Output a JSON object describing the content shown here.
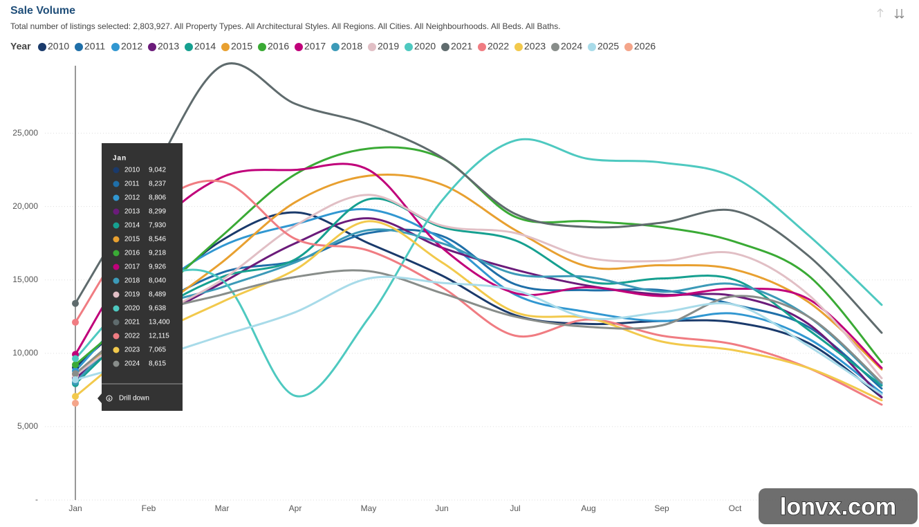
{
  "chart_data": {
    "type": "line",
    "title": "Sale Volume",
    "subtitle": "Total number of listings selected: 2,803,927. All Property Types. All Architectural Styles. All Regions. All Cities. All Neighbourhoods. All Beds. All Baths.",
    "legend_title": "Year",
    "categories": [
      "Jan",
      "Feb",
      "Mar",
      "Apr",
      "May",
      "Jun",
      "Jul",
      "Aug",
      "Sep",
      "Oct",
      null,
      null
    ],
    "ylim": [
      0,
      29600
    ],
    "yticks": [
      {
        "value": 0,
        "label": "-"
      },
      {
        "value": 5000,
        "label": "5,000"
      },
      {
        "value": 10000,
        "label": "10,000"
      },
      {
        "value": 15000,
        "label": "15,000"
      },
      {
        "value": 20000,
        "label": "20,000"
      },
      {
        "value": 25000,
        "label": "25,000"
      }
    ],
    "grid": true,
    "series": [
      {
        "name": "2010",
        "color": "#1a3a6b",
        "values": [
          9042,
          13500,
          17700,
          19600,
          17500,
          15300,
          12600,
          12000,
          12200,
          12100,
          10700,
          7000
        ]
      },
      {
        "name": "2011",
        "color": "#1f6fa8",
        "values": [
          8237,
          12800,
          15500,
          16300,
          18200,
          18000,
          14700,
          14300,
          14300,
          13300,
          11800,
          7600
        ]
      },
      {
        "name": "2012",
        "color": "#3197d1",
        "values": [
          8806,
          14000,
          17300,
          18800,
          19800,
          17800,
          14000,
          12800,
          12200,
          12700,
          11000,
          7300
        ]
      },
      {
        "name": "2013",
        "color": "#6b1b7a",
        "values": [
          8299,
          12000,
          14800,
          17500,
          19200,
          17200,
          15700,
          14600,
          14000,
          13900,
          12000,
          7000
        ]
      },
      {
        "name": "2014",
        "color": "#16a090",
        "values": [
          7930,
          12500,
          15200,
          16400,
          20500,
          18600,
          17700,
          14900,
          15100,
          15000,
          11600,
          7800
        ]
      },
      {
        "name": "2015",
        "color": "#e8a030",
        "values": [
          8546,
          12500,
          16200,
          20300,
          22100,
          21500,
          18400,
          15900,
          16000,
          15700,
          13500,
          8900
        ]
      },
      {
        "name": "2016",
        "color": "#3aaa35",
        "values": [
          9218,
          13500,
          18000,
          22200,
          23950,
          23300,
          19300,
          19000,
          18600,
          17600,
          15300,
          9400
        ]
      },
      {
        "name": "2017",
        "color": "#c0007a",
        "values": [
          9926,
          18000,
          22000,
          22500,
          22500,
          17200,
          14100,
          14500,
          13900,
          14400,
          13700,
          9000
        ]
      },
      {
        "name": "2018",
        "color": "#3c9ab8",
        "values": [
          8040,
          12800,
          14500,
          16200,
          18400,
          17500,
          15400,
          15200,
          14200,
          14700,
          12500,
          7900
        ]
      },
      {
        "name": "2019",
        "color": "#e1bfc5",
        "values": [
          8489,
          12200,
          15000,
          18700,
          20800,
          18700,
          18200,
          16500,
          16300,
          16800,
          14000,
          8300
        ]
      },
      {
        "name": "2020",
        "color": "#4ec9c0",
        "values": [
          9638,
          14700,
          15000,
          7100,
          12400,
          20400,
          24500,
          23250,
          23000,
          21950,
          18050,
          13300
        ]
      },
      {
        "name": "2021",
        "color": "#5f6b6d",
        "values": [
          13400,
          21800,
          29600,
          27000,
          25600,
          23350,
          19500,
          18600,
          18900,
          19700,
          16650,
          11400
        ]
      },
      {
        "name": "2022",
        "color": "#f07c82",
        "values": [
          12115,
          19600,
          21700,
          17800,
          17000,
          14500,
          11200,
          12300,
          11200,
          10600,
          9000,
          6500
        ]
      },
      {
        "name": "2023",
        "color": "#f2c94c",
        "values": [
          7065,
          11000,
          13500,
          15700,
          19000,
          16200,
          12800,
          12400,
          10800,
          10200,
          9000,
          6800
        ]
      },
      {
        "name": "2024",
        "color": "#888d8a",
        "values": [
          8615,
          12500,
          14000,
          15200,
          15600,
          14100,
          12500,
          11800,
          11900,
          13900,
          12500,
          8000
        ]
      },
      {
        "name": "2025",
        "color": "#a8dbe9",
        "values": [
          8200,
          9600,
          11200,
          12800,
          15100,
          14800,
          14300,
          12400,
          12800,
          13300,
          10500,
          7200
        ]
      },
      {
        "name": "2026",
        "color": "#f4a58a",
        "values": [
          6600,
          null,
          null,
          null,
          null,
          null,
          null,
          null,
          null,
          null,
          null,
          null
        ]
      }
    ],
    "tooltip": {
      "title": "Jan",
      "items": [
        {
          "name": "2010",
          "value": "9,042"
        },
        {
          "name": "2011",
          "value": "8,237"
        },
        {
          "name": "2012",
          "value": "8,806"
        },
        {
          "name": "2013",
          "value": "8,299"
        },
        {
          "name": "2014",
          "value": "7,930"
        },
        {
          "name": "2015",
          "value": "8,546"
        },
        {
          "name": "2016",
          "value": "9,218"
        },
        {
          "name": "2017",
          "value": "9,926"
        },
        {
          "name": "2018",
          "value": "8,040"
        },
        {
          "name": "2019",
          "value": "8,489"
        },
        {
          "name": "2020",
          "value": "9,638"
        },
        {
          "name": "2021",
          "value": "13,400"
        },
        {
          "name": "2022",
          "value": "12,115"
        },
        {
          "name": "2023",
          "value": "7,065"
        },
        {
          "name": "2024",
          "value": "8,615"
        }
      ],
      "action": "Drill down"
    },
    "watermark": "lonvx.com"
  }
}
